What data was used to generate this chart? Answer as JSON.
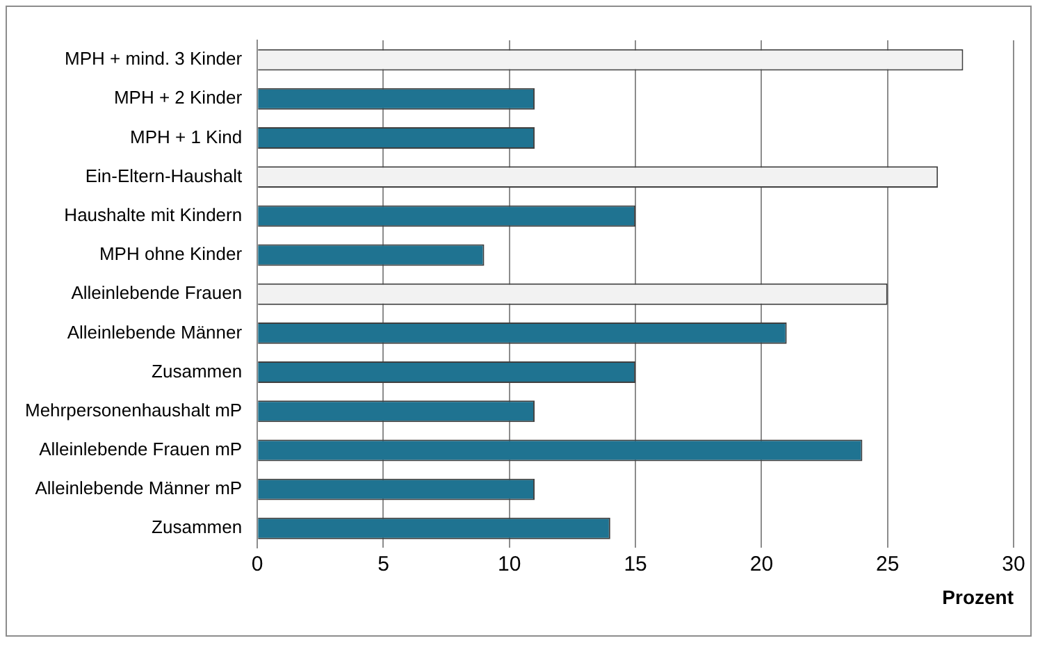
{
  "chart_data": {
    "type": "bar",
    "orientation": "horizontal",
    "xlabel": "Prozent",
    "categories": [
      "MPH + mind. 3 Kinder",
      "MPH + 2 Kinder",
      "MPH + 1 Kind",
      "Ein-Eltern-Haushalt",
      "Haushalte mit Kindern",
      "MPH ohne Kinder",
      "Alleinlebende Frauen",
      "Alleinlebende Männer",
      "Zusammen",
      "Mehrpersonenhaushalt mP",
      "Alleinlebende Frauen mP",
      "Alleinlebende Männer mP",
      "Zusammen"
    ],
    "values": [
      28,
      11,
      11,
      27,
      15,
      9,
      25,
      21,
      15,
      11,
      24,
      11,
      14
    ],
    "colors": [
      "#f2f2f2",
      "#1f7391",
      "#1f7391",
      "#f2f2f2",
      "#1f7391",
      "#1f7391",
      "#f2f2f2",
      "#1f7391",
      "#1f7391",
      "#1f7391",
      "#1f7391",
      "#1f7391",
      "#1f7391"
    ],
    "xlim": [
      0,
      30
    ],
    "xticks": [
      0,
      5,
      10,
      15,
      20,
      25,
      30
    ],
    "grid": "x",
    "legend": false
  }
}
